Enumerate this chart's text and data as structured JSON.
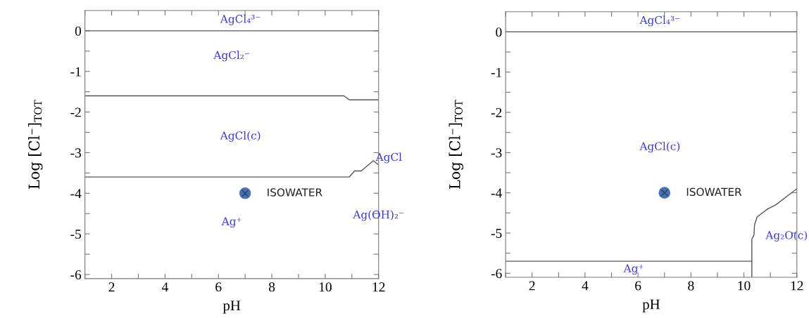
{
  "chart_data": [
    {
      "type": "line",
      "xlabel": "pH",
      "ylabel": "Log [Cl⁻]$_{TOT}$",
      "xlim": [
        1,
        12
      ],
      "ylim": [
        -6.1,
        0.5
      ],
      "xticks": [
        {
          "value": 1,
          "label": null
        },
        2,
        {
          "value": 3,
          "label": null
        },
        4,
        {
          "value": 5,
          "label": null
        },
        6,
        {
          "value": 7,
          "label": null
        },
        8,
        {
          "value": 9,
          "label": null
        },
        10,
        {
          "value": 11,
          "label": null
        },
        12
      ],
      "yticks": [
        -6,
        {
          "value": -5.5,
          "label": null
        },
        -5,
        {
          "value": -4.5,
          "label": null
        },
        -4,
        {
          "value": -3.5,
          "label": null
        },
        -3,
        {
          "value": -2.5,
          "label": null
        },
        -2,
        {
          "value": -1.5,
          "label": null
        },
        -1,
        {
          "value": -0.5,
          "label": null
        },
        0
      ],
      "grid": false,
      "legend": false,
      "line_style": "solid",
      "series": [
        {
          "color": "#555555",
          "x": [
            1,
            12
          ],
          "values": [
            0,
            0
          ]
        },
        {
          "color": "#555555",
          "x": [
            1,
            10.7,
            10.9,
            12
          ],
          "values": [
            -1.6,
            -1.6,
            -1.7,
            -1.7
          ]
        },
        {
          "color": "#555555",
          "x": [
            1,
            10.9,
            11.1,
            11.35,
            11.8,
            12
          ],
          "values": [
            -3.6,
            -3.6,
            -3.45,
            -3.45,
            -3.2,
            -3.3
          ]
        },
        {
          "type": "scatter",
          "color": "#4a72b0",
          "marker": "circle",
          "x": [
            7
          ],
          "values": [
            -4
          ]
        }
      ],
      "annotations": [
        "AgCl₄³⁻",
        "AgCl₂⁻",
        "AgCl(c)",
        "AgCl",
        "Ag⁺",
        "Ag(OH)₂⁻",
        {
          "text": "ISOWATER",
          "x": 7,
          "y": -4
        }
      ]
    },
    {
      "type": "line",
      "xlabel": "pH",
      "ylabel": "Log [Cl⁻]$_{TOT}$",
      "xlim": [
        1,
        12
      ],
      "ylim": [
        -6.1,
        0.5
      ],
      "xticks": [
        {
          "value": 1,
          "label": null
        },
        2,
        {
          "value": 3,
          "label": null
        },
        4,
        {
          "value": 5,
          "label": null
        },
        6,
        {
          "value": 7,
          "label": null
        },
        8,
        {
          "value": 9,
          "label": null
        },
        10,
        {
          "value": 11,
          "label": null
        },
        12
      ],
      "yticks": [
        -6,
        {
          "value": -5.5,
          "label": null
        },
        -5,
        {
          "value": -4.5,
          "label": null
        },
        -4,
        {
          "value": -3.5,
          "label": null
        },
        -3,
        {
          "value": -2.5,
          "label": null
        },
        -2,
        {
          "value": -1.5,
          "label": null
        },
        -1,
        {
          "value": -0.5,
          "label": null
        },
        0
      ],
      "grid": false,
      "legend": false,
      "line_style": "solid",
      "series": [
        {
          "color": "#555555",
          "x": [
            1,
            12
          ],
          "values": [
            0,
            0
          ]
        },
        {
          "color": "#555555",
          "x": [
            1,
            10.3
          ],
          "values": [
            -5.7,
            -5.7
          ]
        },
        {
          "color": "#555555",
          "x": [
            10.3,
            10.3,
            10.38,
            10.4,
            10.5,
            10.7,
            10.9,
            11.2,
            11.7,
            12
          ],
          "values": [
            -6.1,
            -5.15,
            -5.05,
            -4.8,
            -4.6,
            -4.5,
            -4.4,
            -4.3,
            -4.05,
            -3.9
          ]
        },
        {
          "type": "scatter",
          "color": "#4a72b0",
          "marker": "circle",
          "x": [
            7
          ],
          "values": [
            -4
          ]
        }
      ],
      "annotations": [
        "AgCl₄³⁻",
        "AgCl(c)",
        "Ag⁺",
        "Ag₂O(c)",
        {
          "text": "ISOWATER",
          "x": 7,
          "y": -4
        }
      ]
    }
  ]
}
